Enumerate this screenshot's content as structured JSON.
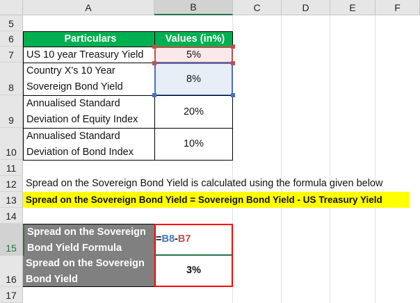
{
  "columns": [
    "A",
    "B",
    "C",
    "D",
    "E",
    "F"
  ],
  "rows": [
    "5",
    "6",
    "7",
    "8",
    "9",
    "10",
    "11",
    "12",
    "13",
    "14",
    "15",
    "16",
    "17"
  ],
  "table": {
    "header": [
      "Particulars",
      "Values (in%)"
    ],
    "rows": [
      {
        "label": "US 10 year Treasury Yield",
        "value": "5%"
      },
      {
        "label": "Country X's 10 Year Sovereign Bond Yield",
        "value": "8%"
      },
      {
        "label": "Annualised Standard Deviation of Equity Index",
        "value": "20%"
      },
      {
        "label": "Annualised Standard Deviation of Bond Index",
        "value": "10%"
      }
    ]
  },
  "note": "Spread on the Sovereign Bond Yield is calculated using the formula given below",
  "formula_banner": "Spread on the Sovereign Bond Yield = Sovereign Bond Yield - US Treasury Yield",
  "calc": {
    "formula_label": "Spread on the Sovereign Bond Yield Formula",
    "formula": {
      "eq": "=",
      "ref1": "B8",
      "op": "-",
      "ref2": "B7"
    },
    "result_label": "Spread on the Sovereign Bond Yield",
    "result": "3%"
  },
  "colors": {
    "header_green": "#00b050",
    "banner_yellow": "#ffff00",
    "ref_blue": "#4472c4",
    "ref_red": "#c0504d",
    "highlight_red": "#ff0000"
  }
}
